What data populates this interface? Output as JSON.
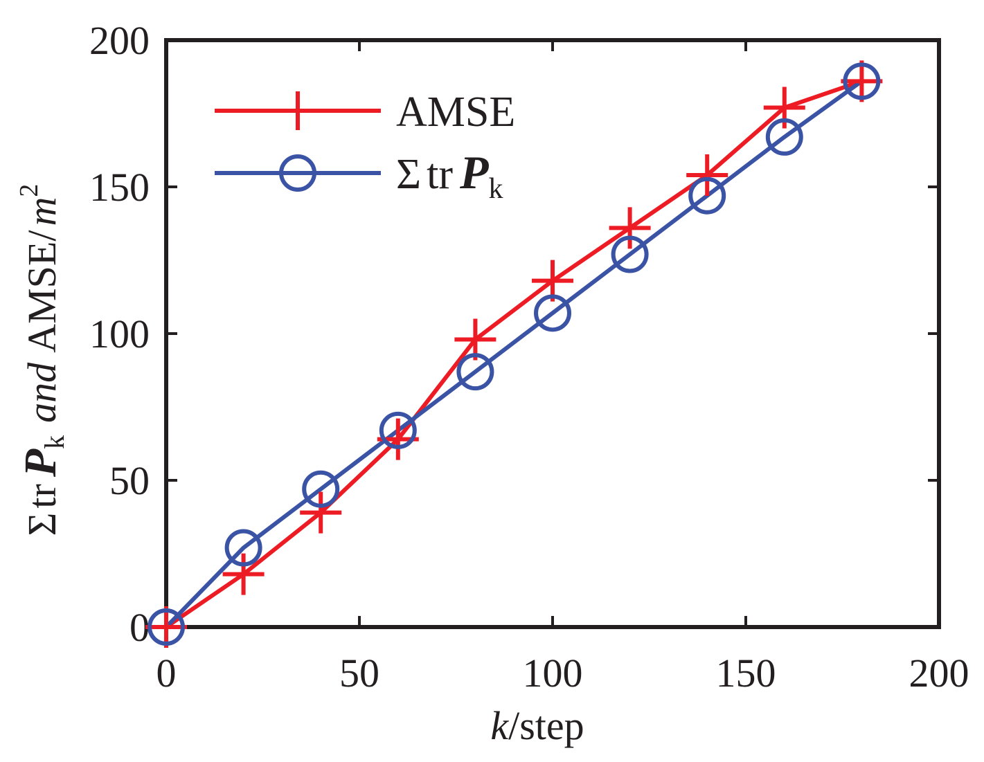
{
  "chart_data": {
    "type": "line",
    "title": "",
    "xlabel_italic": "k",
    "xlabel_rest": "/step",
    "ylabel": {
      "sigma": "Σ",
      "tr": "tr",
      "P": "P",
      "sub": "k",
      "and": "and",
      "amse_unit": "AMSE/",
      "m": "m",
      "sup": "2"
    },
    "xlim": [
      0,
      200
    ],
    "ylim": [
      0,
      200
    ],
    "xticks": [
      0,
      50,
      100,
      150,
      200
    ],
    "yticks": [
      0,
      50,
      100,
      150,
      200
    ],
    "xtick_labels": [
      "0",
      "50",
      "100",
      "150",
      "200"
    ],
    "ytick_labels": [
      "0",
      "50",
      "100",
      "150",
      "200"
    ],
    "grid": false,
    "legend_position": "top-left",
    "series": [
      {
        "name": "AMSE",
        "color": "#ed1c24",
        "marker": "plus",
        "x": [
          0,
          20,
          40,
          60,
          80,
          100,
          120,
          140,
          160,
          180
        ],
        "values": [
          0,
          18,
          39,
          64,
          98,
          118,
          136,
          154,
          177,
          186
        ]
      },
      {
        "name": "Σ tr P_k",
        "color": "#3a53a4",
        "marker": "circle",
        "x": [
          0,
          20,
          40,
          60,
          80,
          100,
          120,
          140,
          160,
          180
        ],
        "values": [
          0,
          27,
          47,
          67,
          87,
          107,
          127,
          147,
          167,
          186
        ]
      }
    ],
    "legend": {
      "amse_label": "AMSE",
      "trp_sigma": "Σ",
      "trp_tr": "tr",
      "trp_P": "P",
      "trp_sub": "k"
    }
  }
}
